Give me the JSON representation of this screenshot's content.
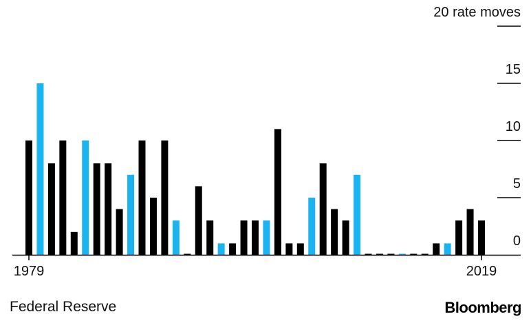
{
  "chart_data": {
    "type": "bar",
    "y_unit_label": "20 rate moves",
    "y_ticks": [
      0,
      5,
      10,
      15,
      20
    ],
    "y_tick_labels": [
      "0",
      "5",
      "10",
      "15",
      "20 rate moves"
    ],
    "ylim": [
      0,
      20
    ],
    "x_tick_labels": [
      "1979",
      "2019"
    ],
    "years": [
      1979,
      1980,
      1981,
      1982,
      1983,
      1984,
      1985,
      1986,
      1987,
      1988,
      1989,
      1990,
      1991,
      1992,
      1993,
      1994,
      1995,
      1996,
      1997,
      1998,
      1999,
      2000,
      2001,
      2002,
      2003,
      2004,
      2005,
      2006,
      2007,
      2008,
      2009,
      2010,
      2011,
      2012,
      2013,
      2014,
      2015,
      2016,
      2017,
      2018,
      2019
    ],
    "values": [
      10,
      15,
      8,
      10,
      2,
      10,
      8,
      8,
      4,
      7,
      10,
      5,
      10,
      3,
      0,
      6,
      3,
      1,
      1,
      3,
      3,
      3,
      11,
      1,
      1,
      5,
      8,
      4,
      3,
      7,
      0,
      0,
      0,
      0,
      0,
      0,
      1,
      1,
      3,
      4,
      3
    ],
    "highlight": [
      false,
      true,
      false,
      false,
      false,
      true,
      false,
      false,
      false,
      true,
      false,
      false,
      false,
      true,
      false,
      false,
      false,
      true,
      false,
      false,
      false,
      true,
      false,
      false,
      false,
      true,
      false,
      false,
      false,
      true,
      false,
      false,
      false,
      true,
      false,
      false,
      false,
      true,
      false,
      false,
      false
    ],
    "colors": {
      "normal": "#000000",
      "highlight": "#1bb3f0"
    },
    "grid": false
  },
  "footer": {
    "source": "Federal Reserve",
    "brand": "Bloomberg"
  }
}
